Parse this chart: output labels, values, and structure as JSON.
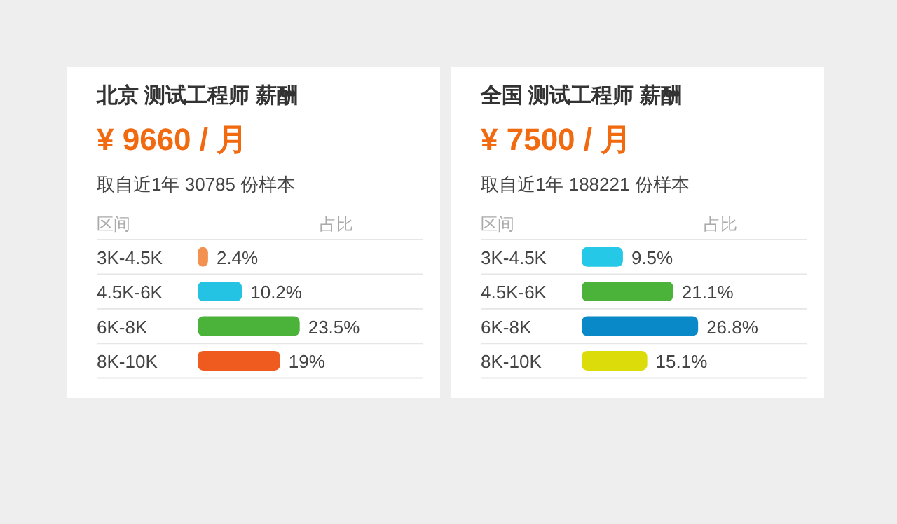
{
  "chart_data": [
    {
      "type": "bar",
      "orientation": "horizontal",
      "title": "北京 测试工程师 薪酬",
      "subtitle": "¥ 9660 / 月",
      "annotations": [
        "取自近1年 30785 份样本",
        "区间",
        "占比"
      ],
      "categories": [
        "3K-4.5K",
        "4.5K-6K",
        "6K-8K",
        "8K-10K"
      ],
      "values": [
        2.4,
        10.2,
        23.5,
        19
      ],
      "value_labels": [
        "2.4%",
        "10.2%",
        "23.5%",
        "19%"
      ],
      "colors": [
        "#f39150",
        "#25c3e3",
        "#4bb23a",
        "#ef5a1f"
      ]
    },
    {
      "type": "bar",
      "orientation": "horizontal",
      "title": "全国 测试工程师 薪酬",
      "subtitle": "¥ 7500 / 月",
      "annotations": [
        "取自近1年 188221 份样本",
        "区间",
        "占比"
      ],
      "categories": [
        "3K-4.5K",
        "4.5K-6K",
        "6K-8K",
        "8K-10K"
      ],
      "values": [
        9.5,
        21.1,
        26.8,
        15.1
      ],
      "value_labels": [
        "9.5%",
        "21.1%",
        "26.8%",
        "15.1%"
      ],
      "colors": [
        "#25c8e6",
        "#4bb23a",
        "#0a89c9",
        "#dcdc0a"
      ]
    }
  ]
}
